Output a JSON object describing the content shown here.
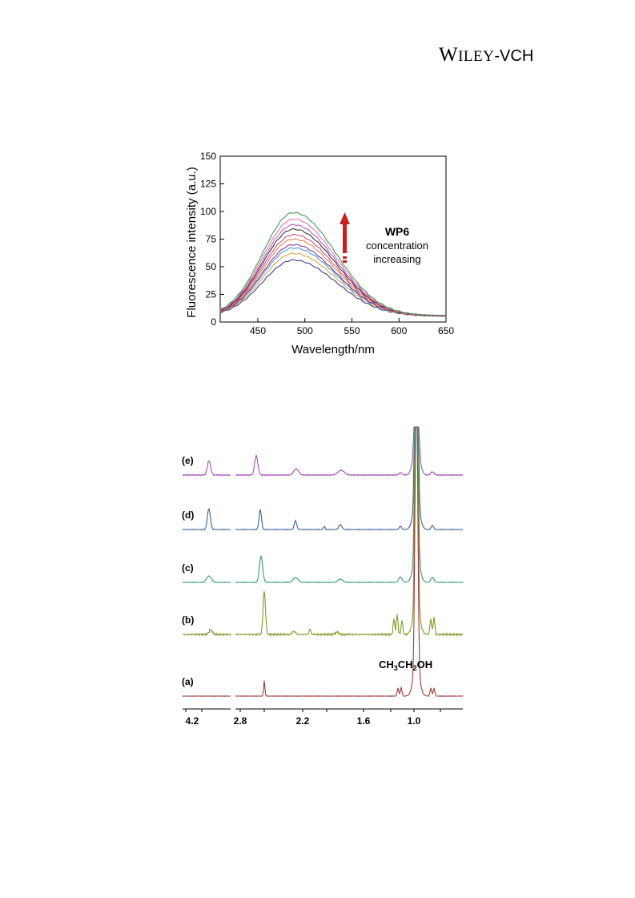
{
  "publisher": {
    "logo_w": "W",
    "logo_rest": "ILEY",
    "logo_dash": "-",
    "logo_vch": "VCH"
  },
  "chart_data": [
    {
      "type": "line",
      "xlabel": "Wavelength/nm",
      "ylabel": "Fluorescence intensity (a.u.)",
      "xlim": [
        410,
        650
      ],
      "ylim": [
        0,
        150
      ],
      "x_ticks": [
        450,
        500,
        550,
        600,
        650
      ],
      "y_ticks": [
        0,
        25,
        50,
        75,
        100,
        125,
        150
      ],
      "annotation": {
        "bold": "WP6",
        "line1": "concentration",
        "line2": "increasing"
      },
      "peak_x": 488,
      "series": [
        {
          "peak": 56,
          "color": "#2b2f93"
        },
        {
          "peak": 62,
          "color": "#d4a03a"
        },
        {
          "peak": 67,
          "color": "#3d8fd8"
        },
        {
          "peak": 70,
          "color": "#7b2b8f"
        },
        {
          "peak": 75,
          "color": "#e07b39"
        },
        {
          "peak": 79,
          "color": "#d6427a"
        },
        {
          "peak": 84,
          "color": "#222222"
        },
        {
          "peak": 88,
          "color": "#b04ec0"
        },
        {
          "peak": 93,
          "color": "#e86aa8"
        },
        {
          "peak": 99,
          "color": "#2f9a3a"
        }
      ]
    },
    {
      "type": "line",
      "x_ticks": [
        "4.2",
        "2.8",
        "2.2",
        "1.6",
        "1.0"
      ],
      "annotation": "CH3CH2OH",
      "annotation_parts": [
        "CH",
        "3",
        "CH",
        "2",
        "OH"
      ],
      "traces": [
        {
          "label": "(e)",
          "color": "#a64fb5"
        },
        {
          "label": "(d)",
          "color": "#3a5f98"
        },
        {
          "label": "(c)",
          "color": "#3a9a72"
        },
        {
          "label": "(b)",
          "color": "#7f9a2a"
        },
        {
          "label": "(a)",
          "color": "#a33a3a"
        }
      ]
    }
  ]
}
